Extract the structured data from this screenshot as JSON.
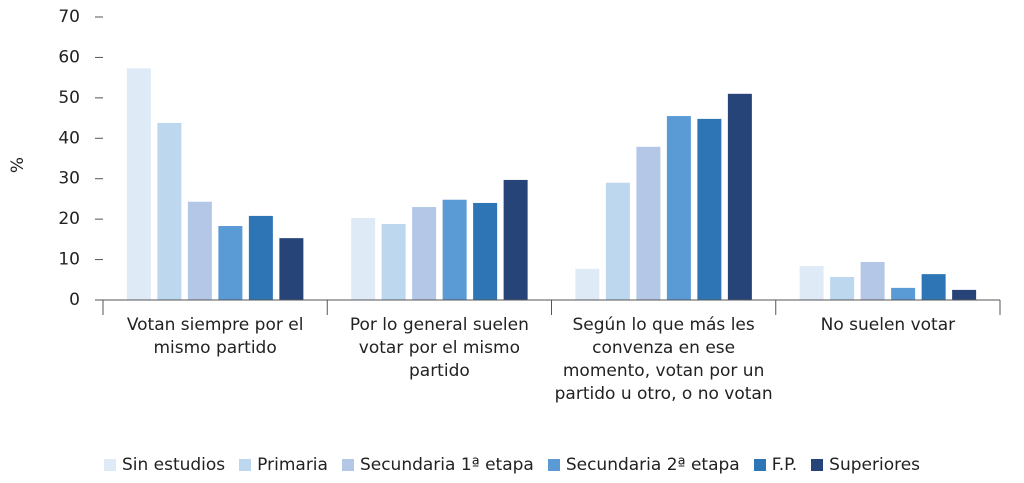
{
  "chart_data": {
    "type": "bar",
    "y_label": "%",
    "categories": [
      "Votan siempre por el mismo partido",
      "Por lo general suelen votar por el mismo partido",
      "Según lo que más les convenza en ese momento, votan por un partido u otro, o no votan",
      "No suelen votar"
    ],
    "series": [
      {
        "name": "Sin estudios",
        "color": "#deebf7",
        "values": [
          57.3,
          20.3,
          7.7,
          8.4
        ]
      },
      {
        "name": "Primaria",
        "color": "#bdd7ee",
        "values": [
          43.8,
          18.8,
          29,
          5.7
        ]
      },
      {
        "name": "Secundaria 1ª etapa",
        "color": "#b4c7e7",
        "values": [
          24.3,
          23,
          37.9,
          9.4
        ]
      },
      {
        "name": "Secundaria 2ª etapa",
        "color": "#5b9bd5",
        "values": [
          18.3,
          24.8,
          45.5,
          3
        ]
      },
      {
        "name": "F.P.",
        "color": "#2e75b6",
        "values": [
          20.8,
          24,
          44.8,
          6.4
        ]
      },
      {
        "name": "Superiores",
        "color": "#264478",
        "values": [
          15.3,
          29.7,
          51,
          2.5
        ]
      }
    ],
    "ylim": [
      0,
      70
    ],
    "yticks": [
      0,
      10,
      20,
      30,
      40,
      50,
      60,
      70
    ],
    "legend": "bottom"
  }
}
